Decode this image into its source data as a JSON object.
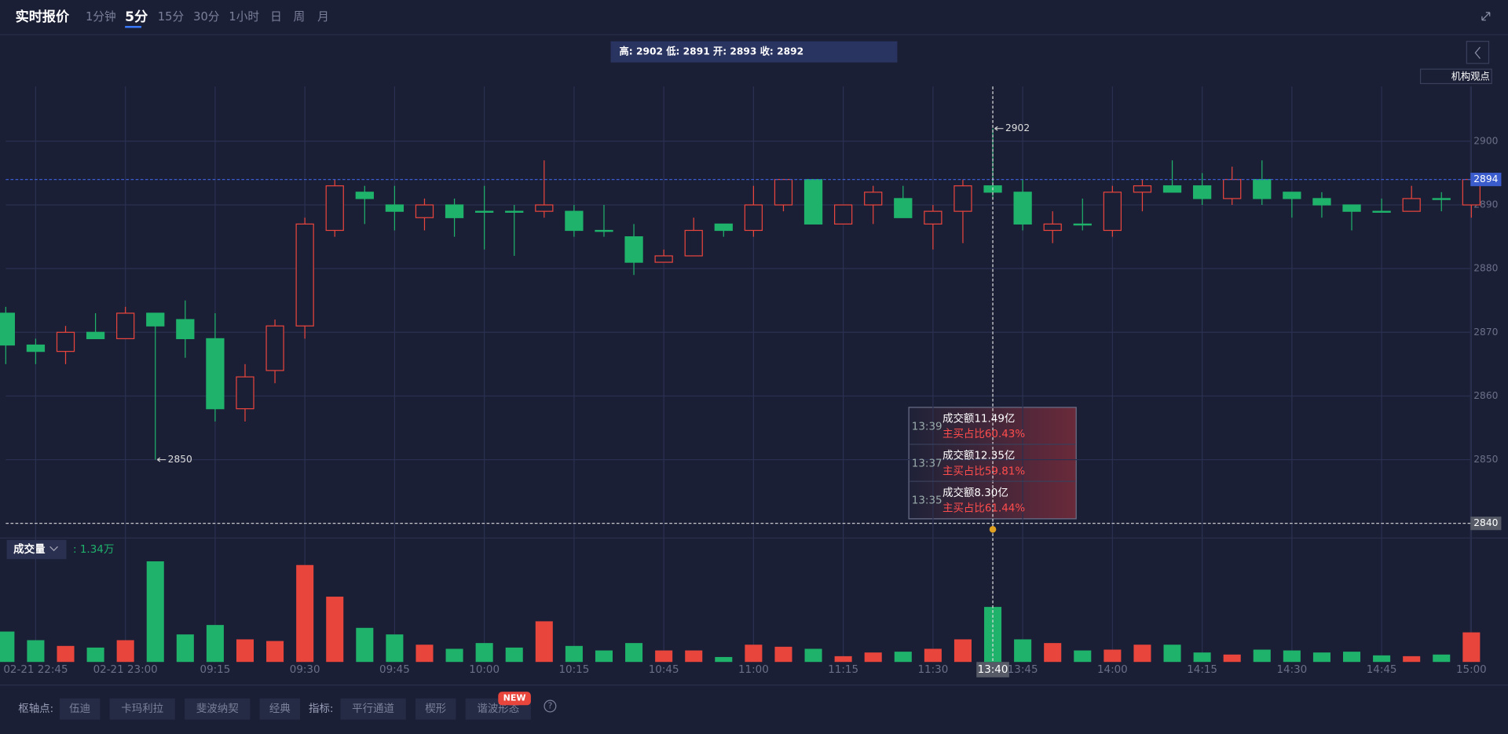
{
  "header": {
    "title": "实时报价",
    "tabs": [
      "1分钟",
      "5分",
      "15分",
      "30分",
      "1小时",
      "日",
      "周",
      "月"
    ],
    "active_tab": 1,
    "info": "高: 2902 低: 2891 开: 2893 收: 2892",
    "side_button": "机构观点"
  },
  "chart_data": {
    "type": "candlestick",
    "up_color": "#e8453c",
    "down_color": "#1fb26b",
    "categories": [
      null,
      "02-21 22:45",
      null,
      null,
      "02-21 23:00",
      null,
      null,
      "09:15",
      null,
      null,
      "09:30",
      null,
      null,
      "09:45",
      null,
      null,
      "10:00",
      null,
      null,
      "10:15",
      null,
      null,
      "10:45",
      null,
      null,
      "11:00",
      null,
      null,
      "11:15",
      null,
      null,
      "11:30",
      null,
      "13:40",
      "13:45",
      null,
      null,
      "14:00",
      null,
      null,
      "14:15",
      null,
      null,
      "14:30",
      null,
      null,
      "14:45",
      null,
      null,
      "15:00"
    ],
    "open": [
      2873,
      2868,
      2867,
      2870,
      2869,
      2873,
      2872,
      2869,
      2858,
      2864,
      2871,
      2886,
      2892,
      2890,
      2888,
      2890,
      2889,
      2889,
      2889,
      2889,
      2886,
      2885,
      2881,
      2882,
      2887,
      2886,
      2890,
      2894,
      2887,
      2890,
      2891,
      2887,
      2889,
      2893,
      2892,
      2886,
      2887,
      2886,
      2892,
      2893,
      2893,
      2891,
      2894,
      2892,
      2891,
      2890,
      2889,
      2889,
      2891,
      2890
    ],
    "high": [
      2874,
      2869,
      2871,
      2873,
      2874,
      2873,
      2875,
      2873,
      2865,
      2872,
      2888,
      2894,
      2893,
      2893,
      2891,
      2891,
      2893,
      2890,
      2897,
      2890,
      2890,
      2887,
      2883,
      2888,
      2887,
      2893,
      2894,
      2894,
      2890,
      2893,
      2893,
      2890,
      2894,
      2902,
      2894,
      2889,
      2891,
      2893,
      2894,
      2897,
      2895,
      2896,
      2897,
      2892,
      2892,
      2890,
      2891,
      2893,
      2892,
      2894
    ],
    "low": [
      2865,
      2865,
      2865,
      2869,
      2869,
      2850,
      2866,
      2856,
      2856,
      2862,
      2869,
      2885,
      2887,
      2886,
      2886,
      2885,
      2883,
      2882,
      2888,
      2885,
      2885,
      2879,
      2881,
      2882,
      2885,
      2885,
      2889,
      2887,
      2887,
      2887,
      2888,
      2883,
      2884,
      2891,
      2886,
      2884,
      2886,
      2885,
      2889,
      2892,
      2890,
      2890,
      2890,
      2888,
      2888,
      2886,
      2889,
      2889,
      2889,
      2888
    ],
    "close": [
      2868,
      2867,
      2870,
      2869,
      2873,
      2871,
      2869,
      2858,
      2863,
      2871,
      2887,
      2893,
      2891,
      2889,
      2890,
      2888,
      2889,
      2889,
      2890,
      2886,
      2886,
      2881,
      2882,
      2886,
      2886,
      2890,
      2894,
      2887,
      2890,
      2892,
      2888,
      2889,
      2893,
      2892,
      2887,
      2887,
      2887,
      2892,
      2893,
      2892,
      2891,
      2894,
      2891,
      2891,
      2890,
      2889,
      2889,
      2891,
      2891,
      2894
    ],
    "ylim": [
      2837.7,
      2908.6
    ],
    "yticks": [
      2850,
      2860,
      2870,
      2880,
      2890,
      2900
    ],
    "grid": true,
    "last_price": 2894,
    "last_price_color": "#3a5ccc",
    "max_marker": 2902,
    "min_marker": 2850,
    "crosshair": {
      "category": "13:40",
      "y": 2840
    },
    "volume": {
      "label": "成交量",
      "value_label": ": 1.34万",
      "ylim": [
        0,
        2.55
      ],
      "values": [
        0.74,
        0.53,
        0.39,
        0.35,
        0.53,
        2.45,
        0.67,
        0.9,
        0.55,
        0.51,
        2.36,
        1.59,
        0.83,
        0.67,
        0.42,
        0.32,
        0.46,
        0.35,
        0.99,
        0.39,
        0.28,
        0.46,
        0.28,
        0.28,
        0.12,
        0.42,
        0.37,
        0.32,
        0.14,
        0.23,
        0.25,
        0.32,
        0.55,
        1.34,
        0.55,
        0.46,
        0.28,
        0.3,
        0.42,
        0.42,
        0.23,
        0.18,
        0.3,
        0.28,
        0.23,
        0.25,
        0.16,
        0.14,
        0.18,
        0.72
      ]
    }
  },
  "tooltip": {
    "rows": [
      {
        "time": "13:39",
        "amount": "成交额11.49亿",
        "ratio": "主买占比60.43%"
      },
      {
        "time": "13:37",
        "amount": "成交额12.35亿",
        "ratio": "主买占比59.81%"
      },
      {
        "time": "13:35",
        "amount": "成交额8.30亿",
        "ratio": "主买占比61.44%"
      }
    ]
  },
  "toolbar": {
    "pivot_label": "枢轴点:",
    "pivots": [
      "伍迪",
      "卡玛利拉",
      "斐波纳契",
      "经典"
    ],
    "indicator_label": "指标:",
    "indicators": [
      "平行通道",
      "楔形",
      "谐波形态"
    ],
    "badge": "NEW",
    "help": "?"
  }
}
